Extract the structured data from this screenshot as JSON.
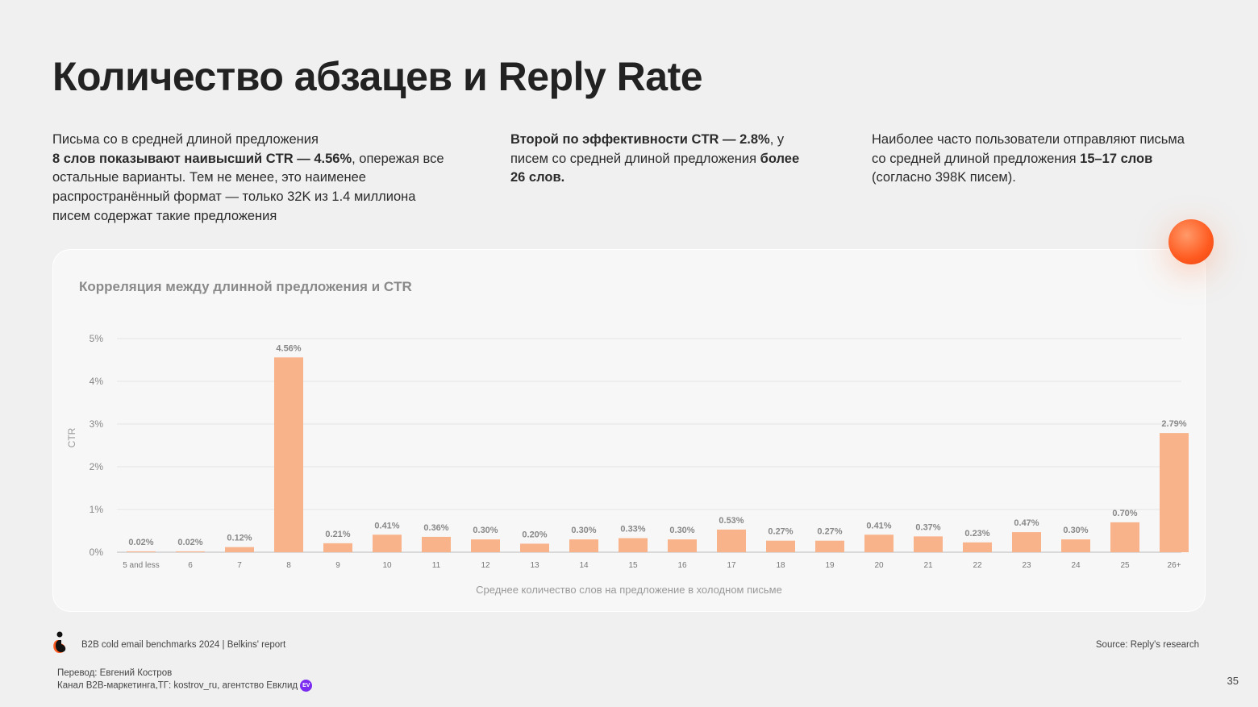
{
  "title": "Количество абзацев и Reply Rate",
  "paragraphs": [
    [
      {
        "t": "Письма со в средней длиной предложения",
        "b": false
      },
      {
        "t": "\n",
        "b": false
      },
      {
        "t": "8 слов показывают наивысший CTR — 4.56%",
        "b": true
      },
      {
        "t": ", опережая все остальные варианты.  Тем не менее, это наименее распространённый формат — только 32K из 1.4 миллиона писем содержат такие предложения",
        "b": false
      }
    ],
    [
      {
        "t": "Второй по эффективности CTR — 2.8%",
        "b": true
      },
      {
        "t": ", у писем со средней длиной предложения ",
        "b": false
      },
      {
        "t": "более 26 слов.",
        "b": true
      }
    ],
    [
      {
        "t": "Наиболее часто пользователи отправляют письма со средней длиной предложения ",
        "b": false
      },
      {
        "t": "15–17 слов",
        "b": true
      },
      {
        "t": " (согласно 398K писем).",
        "b": false
      }
    ]
  ],
  "chart_data": {
    "type": "bar",
    "title": "Корреляция между длинной предложения и CTR",
    "xlabel": "Среднее количество слов на предложение в холодном письме",
    "ylabel": "CTR",
    "ylim": [
      0,
      5
    ],
    "yticks": [
      "0%",
      "1%",
      "2%",
      "3%",
      "4%",
      "5%"
    ],
    "grid": true,
    "bar_color": "#f9b38a",
    "categories": [
      "5 and less",
      "6",
      "7",
      "8",
      "9",
      "10",
      "11",
      "12",
      "13",
      "14",
      "15",
      "16",
      "17",
      "18",
      "19",
      "20",
      "21",
      "22",
      "23",
      "24",
      "25",
      "26+"
    ],
    "values": [
      0.02,
      0.02,
      0.12,
      4.56,
      0.21,
      0.41,
      0.36,
      0.3,
      0.2,
      0.3,
      0.33,
      0.3,
      0.53,
      0.27,
      0.27,
      0.41,
      0.37,
      0.23,
      0.47,
      0.3,
      0.7,
      2.79
    ],
    "labels": [
      "0.02%",
      "0.02%",
      "0.12%",
      "4.56%",
      "0.21%",
      "0.41%",
      "0.36%",
      "0.30%",
      "0.20%",
      "0.30%",
      "0.33%",
      "0.30%",
      "0.53%",
      "0.27%",
      "0.27%",
      "0.41%",
      "0.37%",
      "0.23%",
      "0.47%",
      "0.30%",
      "0.70%",
      "2.79%"
    ]
  },
  "footer": {
    "report": "B2B cold email benchmarks 2024 | Belkins' report",
    "source": "Source: Reply's research",
    "translator": "Перевод: Евгений Костров",
    "channel": "Канал B2B-маркетинга,ТГ: kostrov_ru, агентство Евклид",
    "badge": "EV",
    "page": "35"
  }
}
